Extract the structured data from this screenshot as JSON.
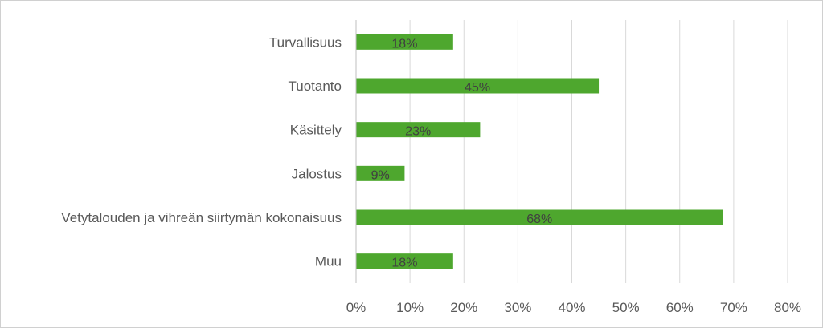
{
  "chart_data": {
    "type": "bar",
    "orientation": "horizontal",
    "categories": [
      "Turvallisuus",
      "Tuotanto",
      "Käsittely",
      "Jalostus",
      "Vetytalouden ja vihreän siirtymän kokonaisuus",
      "Muu"
    ],
    "values": [
      18,
      45,
      23,
      9,
      68,
      18
    ],
    "data_labels": [
      "18%",
      "45%",
      "23%",
      "9%",
      "68%",
      "18%"
    ],
    "x_ticks": [
      "0%",
      "10%",
      "20%",
      "30%",
      "40%",
      "50%",
      "60%",
      "70%",
      "80%"
    ],
    "xlim": [
      0,
      80
    ],
    "title": "",
    "xlabel": "",
    "ylabel": "",
    "grid": "vertical",
    "legend": "none",
    "colors": {
      "bar": "#4ea72e",
      "grid": "#d9d9d9",
      "axis": "#bfbfbf",
      "border": "#d0d0d0"
    }
  }
}
